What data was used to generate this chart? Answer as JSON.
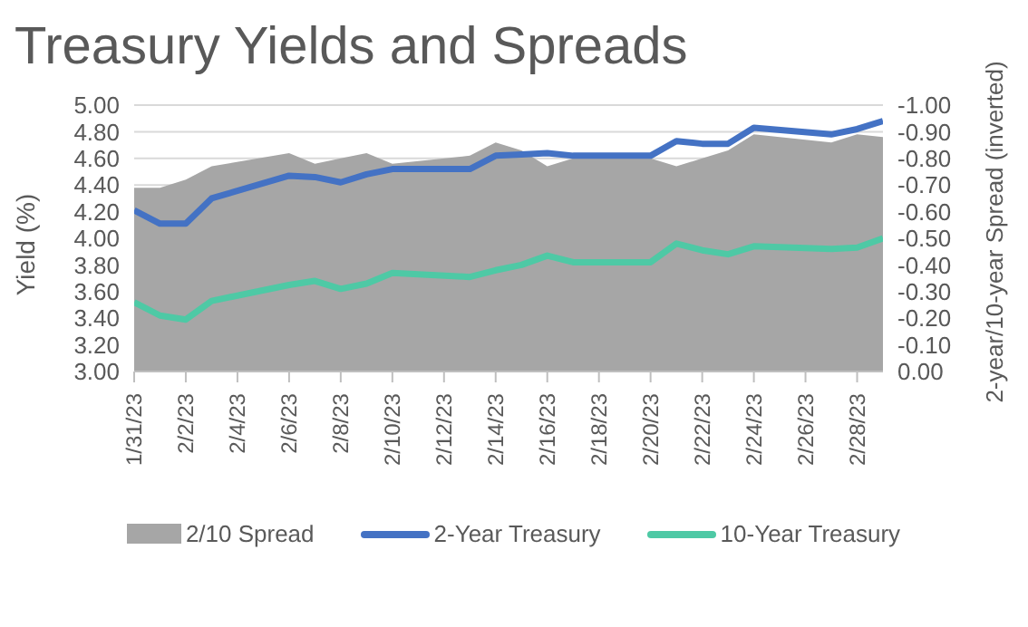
{
  "chart_data": {
    "type": "line",
    "title": "Treasury Yields and Spreads",
    "ylabel": "Yield (%)",
    "y2label": "2-year/10-year Spread (inverted)",
    "x": [
      "--01-31",
      "--02-01",
      "--02-02",
      "--02-03",
      "--02-06",
      "--02-07",
      "--02-08",
      "--02-09",
      "--02-10",
      "--02-13",
      "--02-14",
      "--02-15",
      "--02-16",
      "--02-17",
      "--02-20",
      "--02-21",
      "--02-22",
      "--02-23",
      "--02-24",
      "--02-27",
      "--02-28",
      "--03-01"
    ],
    "series": [
      {
        "name": "2/10 Spread",
        "type": "area",
        "axis": "y2",
        "color": "#a6a6a6",
        "values": [
          -0.69,
          -0.69,
          -0.72,
          -0.77,
          -0.82,
          -0.78,
          -0.8,
          -0.82,
          -0.78,
          -0.81,
          -0.86,
          -0.83,
          -0.77,
          -0.8,
          -0.8,
          -0.77,
          -0.8,
          -0.83,
          -0.89,
          -0.86,
          -0.89,
          -0.88
        ]
      },
      {
        "name": "2-Year Treasury",
        "color": "#4472c4",
        "values": [
          4.21,
          4.11,
          4.11,
          4.3,
          4.47,
          4.46,
          4.42,
          4.48,
          4.52,
          4.52,
          4.62,
          4.63,
          4.64,
          4.62,
          4.62,
          4.73,
          4.71,
          4.71,
          4.83,
          4.78,
          4.82,
          4.88
        ]
      },
      {
        "name": "10-Year Treasury",
        "color": "#4ec9a5",
        "values": [
          3.52,
          3.42,
          3.39,
          3.53,
          3.65,
          3.68,
          3.62,
          3.66,
          3.74,
          3.71,
          3.76,
          3.8,
          3.87,
          3.82,
          3.82,
          3.96,
          3.91,
          3.88,
          3.94,
          3.92,
          3.93,
          4.0
        ]
      }
    ],
    "xlim": [
      "--01-31",
      "--03-01"
    ],
    "xticks": [
      {
        "value": "--01-31",
        "label": "1/31/23"
      },
      {
        "value": "--02-02",
        "label": "2/2/23"
      },
      {
        "value": "--02-04",
        "label": "2/4/23"
      },
      {
        "value": "--02-06",
        "label": "2/6/23"
      },
      {
        "value": "--02-08",
        "label": "2/8/23"
      },
      {
        "value": "--02-10",
        "label": "2/10/23"
      },
      {
        "value": "--02-12",
        "label": "2/12/23"
      },
      {
        "value": "--02-14",
        "label": "2/14/23"
      },
      {
        "value": "--02-16",
        "label": "2/16/23"
      },
      {
        "value": "--02-18",
        "label": "2/18/23"
      },
      {
        "value": "--02-20",
        "label": "2/20/23"
      },
      {
        "value": "--02-22",
        "label": "2/22/23"
      },
      {
        "value": "--02-24",
        "label": "2/24/23"
      },
      {
        "value": "--02-26",
        "label": "2/26/23"
      },
      {
        "value": "--02-28",
        "label": "2/28/23"
      }
    ],
    "ylim": [
      3,
      5
    ],
    "yticks": [
      {
        "value": 3,
        "label": "3.00"
      },
      {
        "value": 3.2,
        "label": "3.20"
      },
      {
        "value": 3.4,
        "label": "3.40"
      },
      {
        "value": 3.6,
        "label": "3.60"
      },
      {
        "value": 3.8,
        "label": "3.80"
      },
      {
        "value": 4,
        "label": "4.00"
      },
      {
        "value": 4.2,
        "label": "4.20"
      },
      {
        "value": 4.4,
        "label": "4.40"
      },
      {
        "value": 4.6,
        "label": "4.60"
      },
      {
        "value": 4.8,
        "label": "4.80"
      },
      {
        "value": 5,
        "label": "5.00"
      }
    ],
    "y2lim": [
      0,
      -1
    ],
    "y2ticks": [
      {
        "value": 0,
        "label": "0.00"
      },
      {
        "value": -0.1,
        "label": "-0.10"
      },
      {
        "value": -0.2,
        "label": "-0.20"
      },
      {
        "value": -0.3,
        "label": "-0.30"
      },
      {
        "value": -0.4,
        "label": "-0.40"
      },
      {
        "value": -0.5,
        "label": "-0.50"
      },
      {
        "value": -0.6,
        "label": "-0.60"
      },
      {
        "value": -0.7,
        "label": "-0.70"
      },
      {
        "value": -0.8,
        "label": "-0.80"
      },
      {
        "value": -0.9,
        "label": "-0.90"
      },
      {
        "value": -1,
        "label": "-1.00"
      }
    ],
    "grid": "y",
    "legend": "bottom",
    "marker": "none",
    "line_style": "solid"
  }
}
